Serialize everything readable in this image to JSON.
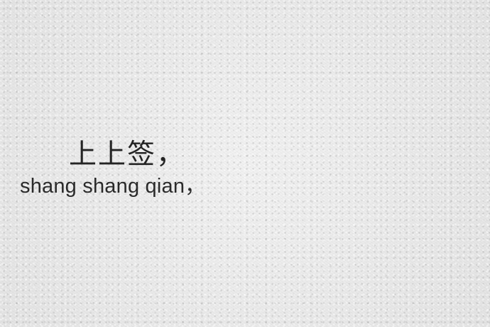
{
  "photo": {
    "hanzi": "上上签，",
    "pinyin": "shang shang qian，",
    "background_color": "#ececec",
    "text_color": "#2a2a2a"
  }
}
